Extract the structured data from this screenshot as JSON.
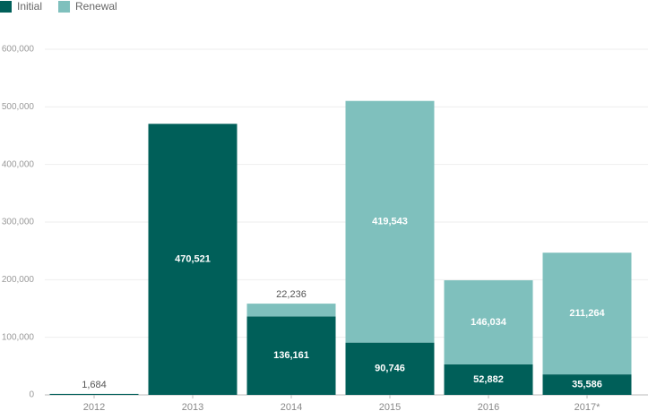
{
  "chart_data": {
    "type": "stacked_bar",
    "categories": [
      "2012",
      "2013",
      "2014",
      "2015",
      "2016",
      "2017*"
    ],
    "series": [
      {
        "name": "Initial",
        "color": "#005f59",
        "values": [
          1684,
          470521,
          136161,
          90746,
          52882,
          35586
        ],
        "value_labels": [
          "1,684",
          "470,521",
          "136,161",
          "90,746",
          "52,882",
          "35,586"
        ]
      },
      {
        "name": "Renewal",
        "color": "#7fc0bd",
        "values": [
          null,
          null,
          22236,
          419543,
          146034,
          211264
        ],
        "value_labels": [
          null,
          null,
          "22,236",
          "419,543",
          "146,034",
          "211,264"
        ]
      }
    ],
    "ylim": [
      0,
      600000
    ],
    "yticks": [
      0,
      {
        "value": 100000,
        "label": "100,000"
      },
      {
        "value": 200000,
        "label": "200,000"
      },
      {
        "value": 300000,
        "label": "300,000"
      },
      {
        "value": 400000,
        "label": "400,000"
      },
      {
        "value": 500000,
        "label": "500,000"
      },
      {
        "value": 600000,
        "label": "600,000"
      }
    ],
    "grid": true
  }
}
